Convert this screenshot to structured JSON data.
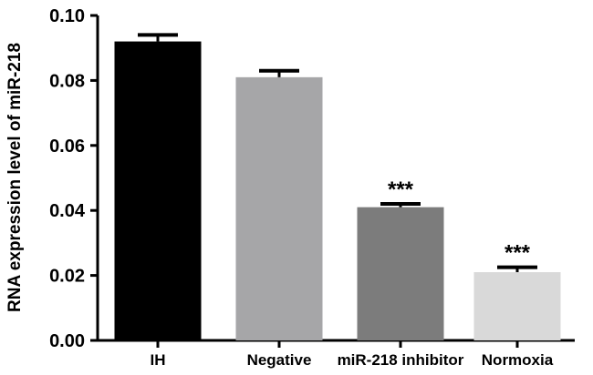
{
  "chart_data": {
    "type": "bar",
    "title": "",
    "xlabel": "",
    "ylabel": "RNA expression level of miR-218",
    "ylim": [
      0,
      0.1
    ],
    "yticks": [
      "0.00",
      "0.02",
      "0.04",
      "0.06",
      "0.08",
      "0.10"
    ],
    "ytick_values": [
      0,
      0.02,
      0.04,
      0.06,
      0.08,
      0.1
    ],
    "categories": [
      "IH",
      "Negative",
      "miR-218 inhibitor",
      "Normoxia"
    ],
    "values": [
      0.092,
      0.081,
      0.041,
      0.021
    ],
    "errors": [
      0.002,
      0.002,
      0.001,
      0.0015
    ],
    "colors": [
      "#000000",
      "#a6a6a8",
      "#7c7c7c",
      "#d9d9d9"
    ],
    "significance": [
      "",
      "",
      "***",
      "***"
    ],
    "grid": false,
    "legend": "none"
  }
}
